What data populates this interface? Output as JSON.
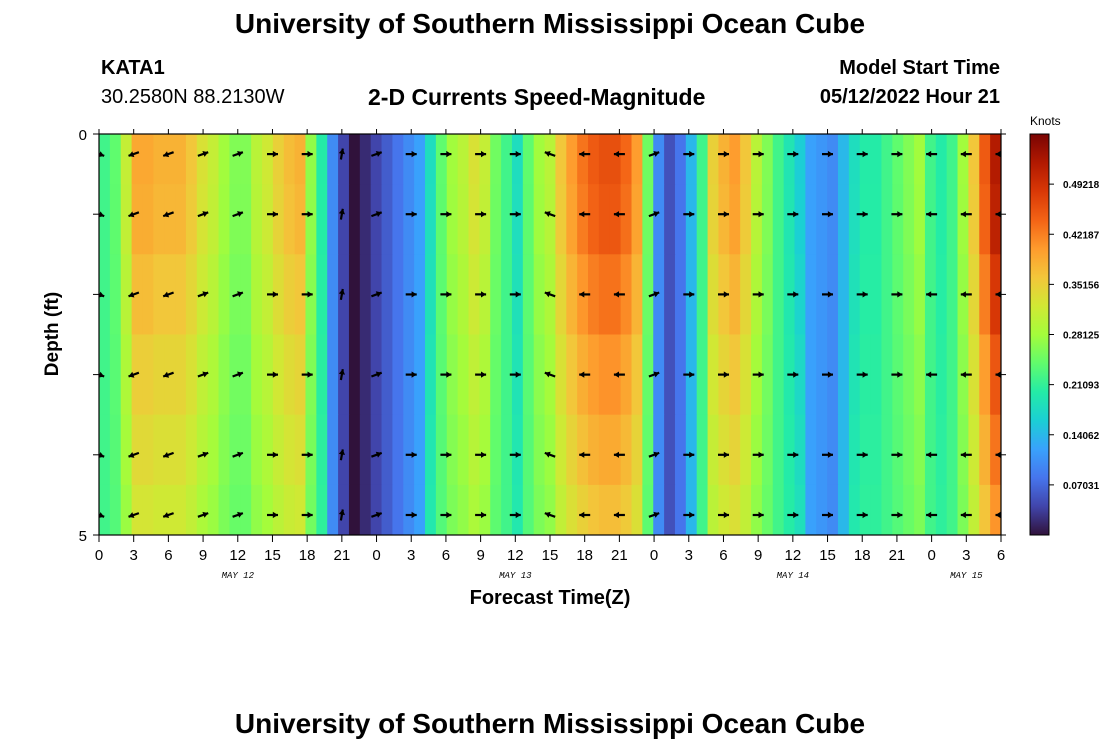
{
  "header": {
    "title": "University of Southern Mississippi Ocean Cube",
    "station_id": "KATA1",
    "station_coords": "30.2580N  88.2130W",
    "model_start_label": "Model Start Time",
    "model_start_value": "05/12/2022 Hour 21"
  },
  "footer": {
    "title": "University of Southern Mississippi Ocean Cube"
  },
  "chart_data": {
    "type": "heatmap",
    "title": "2-D Currents Speed-Magnitude",
    "xlabel": "Forecast Time(Z)",
    "ylabel": "Depth (ft)",
    "x_tick_labels": [
      "0",
      "3",
      "6",
      "9",
      "12",
      "15",
      "18",
      "21",
      "0",
      "3",
      "6",
      "9",
      "12",
      "15",
      "18",
      "21",
      "0",
      "3",
      "6",
      "9",
      "12",
      "15",
      "18",
      "21",
      "0",
      "3",
      "6"
    ],
    "date_labels": [
      {
        "label": "MAY 12",
        "hour": 12
      },
      {
        "label": "MAY 13",
        "hour": 36
      },
      {
        "label": "MAY 14",
        "hour": 60
      },
      {
        "label": "MAY 15",
        "hour": 75
      }
    ],
    "x_range_hours": [
      0,
      78
    ],
    "y_tick_labels": [
      "0",
      "5"
    ],
    "y_range_ft": [
      0,
      5
    ],
    "colorbar": {
      "label": "Knots",
      "range": [
        0,
        0.5625
      ],
      "ticks": [
        "0.49218",
        "0.42187",
        "0.35156",
        "0.28125",
        "0.21093",
        "0.14062",
        "0.07031"
      ],
      "colors": [
        "#30123b",
        "#4145ab",
        "#4675ed",
        "#39a2fc",
        "#1bcfd4",
        "#24eca6",
        "#61fc6c",
        "#a4fc3b",
        "#d1e834",
        "#f3c63a",
        "#fe9b2d",
        "#f36315",
        "#d93806",
        "#b11901",
        "#7a0403"
      ]
    },
    "depth_rows_ft": [
      0.25,
      1,
      2,
      3,
      4,
      4.75
    ],
    "speed_columns": [
      0.22,
      0.24,
      0.31,
      0.39,
      0.39,
      0.38,
      0.38,
      0.38,
      0.36,
      0.33,
      0.31,
      0.28,
      0.26,
      0.26,
      0.3,
      0.32,
      0.35,
      0.37,
      0.38,
      0.27,
      0.2,
      0.1,
      0.04,
      0.0,
      0.02,
      0.04,
      0.06,
      0.08,
      0.1,
      0.12,
      0.18,
      0.24,
      0.28,
      0.3,
      0.33,
      0.31,
      0.25,
      0.22,
      0.18,
      0.24,
      0.28,
      0.3,
      0.36,
      0.4,
      0.43,
      0.45,
      0.46,
      0.46,
      0.44,
      0.4,
      0.25,
      0.1,
      0.05,
      0.08,
      0.14,
      0.22,
      0.35,
      0.38,
      0.4,
      0.36,
      0.3,
      0.26,
      0.22,
      0.19,
      0.16,
      0.12,
      0.11,
      0.1,
      0.14,
      0.18,
      0.2,
      0.2,
      0.22,
      0.24,
      0.26,
      0.28,
      0.22,
      0.2,
      0.22,
      0.28,
      0.36,
      0.45,
      0.52
    ],
    "depth_factors": [
      1.0,
      0.97,
      0.88,
      0.78,
      0.7,
      0.62
    ],
    "arrow_hours": [
      0,
      3,
      6,
      9,
      12,
      15,
      18,
      21,
      24,
      27,
      30,
      33,
      36,
      39,
      42,
      45,
      48,
      51,
      54,
      57,
      60,
      63,
      66,
      69,
      72,
      75,
      78
    ],
    "arrow_angles_deg": [
      20,
      160,
      160,
      -20,
      -20,
      0,
      0,
      -80,
      -20,
      0,
      0,
      0,
      0,
      -160,
      180,
      180,
      -20,
      0,
      0,
      0,
      0,
      0,
      0,
      0,
      180,
      180,
      180
    ],
    "notes": "arrow angles: 0 = east (pointing right), negative = upward"
  }
}
